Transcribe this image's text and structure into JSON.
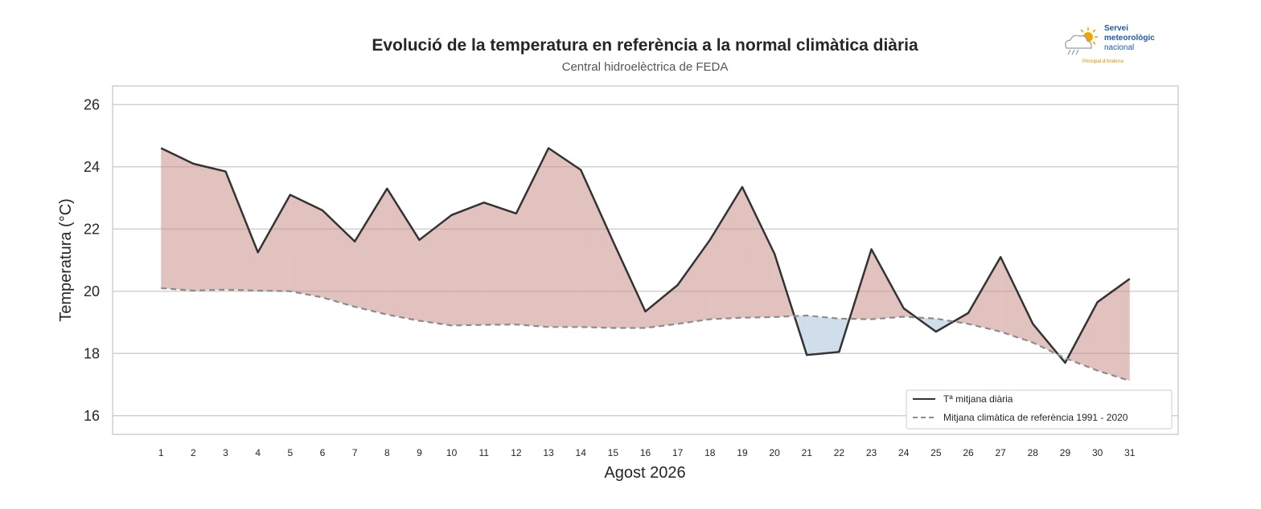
{
  "logo": {
    "line1": "Servei",
    "line2": "meteorològic",
    "line3": "nacional",
    "line4": "Principat d'Andorra",
    "colors": {
      "text": "#1f5aa6",
      "sun": "#f0a500",
      "small": "#e08a00"
    }
  },
  "chart_data": {
    "type": "line",
    "title": "Evolució de la temperatura en referència a la normal climàtica diària",
    "subtitle": "Central hidroelèctrica de FEDA",
    "xlabel": "Agost 2026",
    "ylabel": "Temperatura (°C)",
    "ylim": [
      15.4,
      26.6
    ],
    "yticks": [
      16,
      18,
      20,
      22,
      24,
      26
    ],
    "xlim": [
      -0.5,
      32.5
    ],
    "grid": "horizontal",
    "x": [
      1,
      2,
      3,
      4,
      5,
      6,
      7,
      8,
      9,
      10,
      11,
      12,
      13,
      14,
      15,
      16,
      17,
      18,
      19,
      20,
      21,
      22,
      23,
      24,
      25,
      26,
      27,
      28,
      29,
      30,
      31
    ],
    "series": [
      {
        "name": "Tª mitjana diària",
        "style": "solid",
        "color": "#333333",
        "values": [
          24.6,
          24.1,
          23.85,
          21.25,
          23.1,
          22.6,
          21.6,
          23.3,
          21.65,
          22.45,
          22.85,
          22.5,
          24.6,
          23.9,
          21.6,
          19.35,
          20.2,
          21.65,
          23.35,
          21.2,
          17.95,
          18.05,
          21.35,
          19.45,
          18.7,
          19.3,
          21.1,
          18.95,
          17.7,
          19.65,
          20.4
        ]
      },
      {
        "name": "Mitjana climàtica de referència 1991 - 2020",
        "style": "dashed",
        "color": "#8c8c8c",
        "values": [
          20.1,
          20.02,
          20.05,
          20.02,
          20.0,
          19.8,
          19.5,
          19.25,
          19.05,
          18.9,
          18.92,
          18.93,
          18.85,
          18.85,
          18.82,
          18.82,
          18.95,
          19.1,
          19.15,
          19.17,
          19.22,
          19.12,
          19.1,
          19.18,
          19.12,
          18.95,
          18.7,
          18.35,
          17.85,
          17.45,
          17.12
        ]
      }
    ],
    "fill_colors": {
      "above": "#c98f8a",
      "below": "#a9c3dc"
    },
    "legend_position": "bottom-right"
  }
}
